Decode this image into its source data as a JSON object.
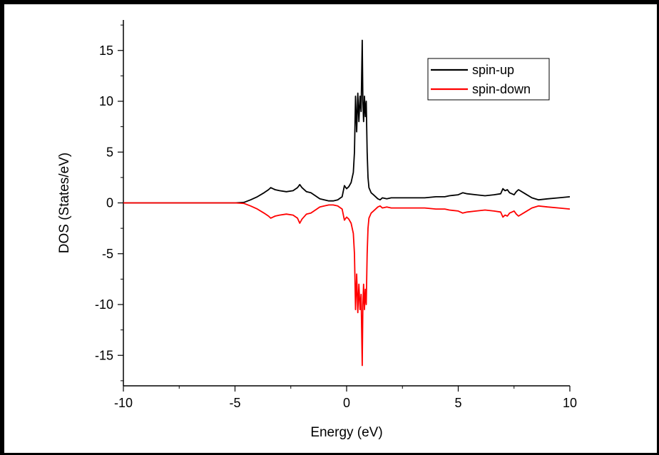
{
  "chart_data": {
    "type": "line",
    "title": "",
    "xlabel": "Energy (eV)",
    "ylabel": "DOS (States/eV)",
    "xlim": [
      -10,
      10
    ],
    "ylim": [
      -18,
      18
    ],
    "x_ticks": [
      -10,
      -5,
      0,
      5,
      10
    ],
    "y_ticks": [
      -15,
      -10,
      -5,
      0,
      5,
      10,
      15
    ],
    "x_tick_labels": [
      "-10",
      "-5",
      "0",
      "5",
      "10"
    ],
    "y_tick_labels": [
      "-15",
      "-10",
      "-5",
      "0",
      "5",
      "10",
      "15"
    ],
    "grid": false,
    "legend_position": "top-right",
    "series": [
      {
        "name": "spin-up",
        "color": "#000000",
        "x": [
          -10,
          -5,
          -4.6,
          -4.3,
          -4.0,
          -3.7,
          -3.5,
          -3.4,
          -3.3,
          -3.2,
          -3.0,
          -2.7,
          -2.4,
          -2.2,
          -2.1,
          -2.0,
          -1.8,
          -1.6,
          -1.4,
          -1.2,
          -1.0,
          -0.8,
          -0.6,
          -0.4,
          -0.2,
          -0.1,
          0.0,
          0.1,
          0.2,
          0.3,
          0.35,
          0.4,
          0.45,
          0.5,
          0.55,
          0.6,
          0.65,
          0.7,
          0.73,
          0.76,
          0.8,
          0.84,
          0.88,
          0.92,
          0.96,
          1.0,
          1.1,
          1.2,
          1.3,
          1.4,
          1.5,
          1.6,
          1.8,
          2.0,
          2.5,
          3.0,
          3.5,
          4.0,
          4.4,
          4.6,
          5.0,
          5.2,
          5.4,
          5.8,
          6.2,
          6.6,
          6.9,
          7.0,
          7.1,
          7.2,
          7.3,
          7.5,
          7.6,
          7.7,
          8.0,
          8.3,
          8.6,
          9.0,
          9.5,
          10.0
        ],
        "y": [
          0,
          0,
          0.05,
          0.3,
          0.6,
          1.0,
          1.3,
          1.5,
          1.4,
          1.3,
          1.2,
          1.1,
          1.2,
          1.5,
          1.8,
          1.5,
          1.1,
          1.0,
          0.7,
          0.4,
          0.3,
          0.2,
          0.2,
          0.3,
          0.6,
          1.7,
          1.4,
          1.6,
          2.0,
          3.0,
          5.0,
          10.5,
          7.0,
          10.8,
          8.0,
          10.5,
          9.0,
          16.0,
          10.0,
          8.0,
          10.5,
          8.5,
          10.0,
          5.0,
          2.5,
          1.5,
          1.0,
          0.8,
          0.6,
          0.4,
          0.3,
          0.5,
          0.4,
          0.5,
          0.5,
          0.5,
          0.5,
          0.6,
          0.6,
          0.7,
          0.8,
          1.0,
          0.9,
          0.8,
          0.7,
          0.8,
          0.9,
          1.4,
          1.2,
          1.3,
          1.0,
          0.8,
          1.1,
          1.3,
          0.9,
          0.5,
          0.3,
          0.4,
          0.5,
          0.6
        ]
      },
      {
        "name": "spin-down",
        "color": "#ff0000",
        "x": [
          -10,
          -5,
          -4.6,
          -4.3,
          -4.0,
          -3.7,
          -3.5,
          -3.4,
          -3.3,
          -3.2,
          -3.0,
          -2.7,
          -2.4,
          -2.2,
          -2.1,
          -2.0,
          -1.8,
          -1.6,
          -1.4,
          -1.2,
          -1.0,
          -0.8,
          -0.6,
          -0.4,
          -0.2,
          -0.1,
          0.0,
          0.1,
          0.2,
          0.3,
          0.35,
          0.4,
          0.45,
          0.5,
          0.55,
          0.6,
          0.65,
          0.7,
          0.73,
          0.76,
          0.8,
          0.84,
          0.88,
          0.92,
          0.96,
          1.0,
          1.1,
          1.2,
          1.3,
          1.4,
          1.5,
          1.6,
          1.8,
          2.0,
          2.5,
          3.0,
          3.5,
          4.0,
          4.4,
          4.6,
          5.0,
          5.2,
          5.4,
          5.8,
          6.2,
          6.6,
          6.9,
          7.0,
          7.1,
          7.2,
          7.3,
          7.5,
          7.6,
          7.7,
          8.0,
          8.3,
          8.6,
          9.0,
          9.5,
          10.0
        ],
        "y": [
          0,
          0,
          -0.05,
          -0.3,
          -0.6,
          -1.0,
          -1.3,
          -1.5,
          -1.4,
          -1.3,
          -1.2,
          -1.1,
          -1.2,
          -1.5,
          -2.0,
          -1.6,
          -1.1,
          -1.0,
          -0.7,
          -0.4,
          -0.3,
          -0.2,
          -0.2,
          -0.3,
          -0.6,
          -1.7,
          -1.4,
          -1.6,
          -2.0,
          -3.0,
          -5.0,
          -10.5,
          -7.0,
          -10.8,
          -8.0,
          -10.5,
          -9.0,
          -16.0,
          -10.0,
          -8.0,
          -10.5,
          -8.5,
          -10.0,
          -5.0,
          -2.5,
          -1.5,
          -1.0,
          -0.8,
          -0.6,
          -0.4,
          -0.3,
          -0.5,
          -0.4,
          -0.5,
          -0.5,
          -0.5,
          -0.5,
          -0.6,
          -0.6,
          -0.7,
          -0.8,
          -1.0,
          -0.9,
          -0.8,
          -0.7,
          -0.8,
          -0.9,
          -1.4,
          -1.2,
          -1.3,
          -1.0,
          -0.8,
          -1.1,
          -1.3,
          -0.9,
          -0.5,
          -0.3,
          -0.4,
          -0.5,
          -0.6
        ]
      }
    ]
  }
}
